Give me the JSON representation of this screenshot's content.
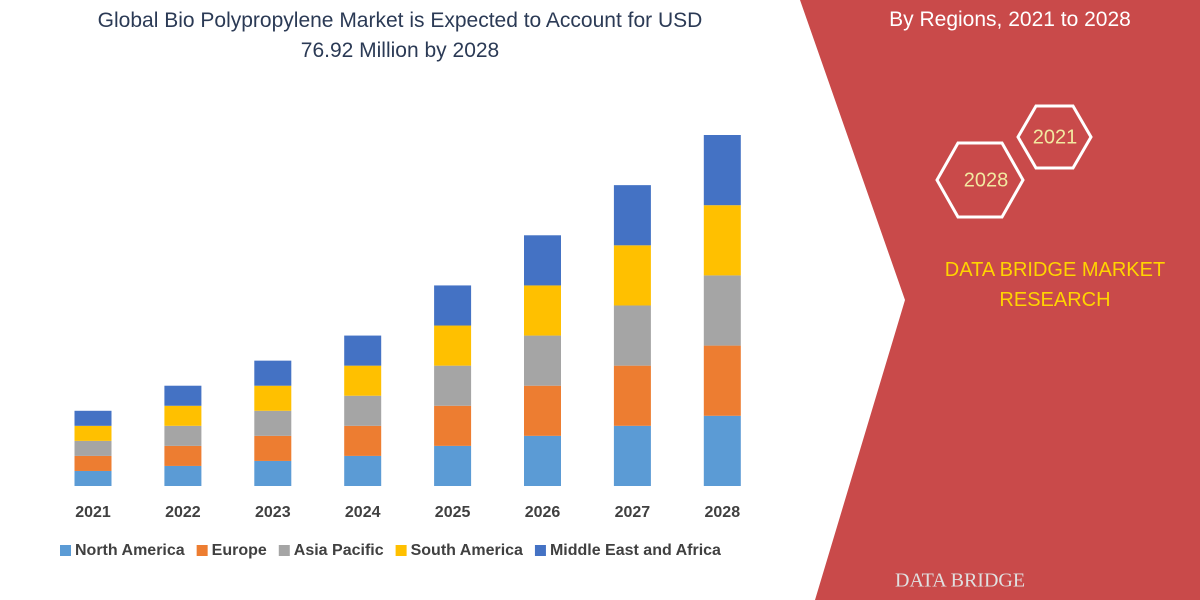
{
  "chart_data": {
    "type": "stacked_bar",
    "title": "Global Bio Polypropylene Market is Expected to Account for USD 76.92 Million by 2028",
    "categories": [
      "2021",
      "2022",
      "2023",
      "2024",
      "2025",
      "2026",
      "2027",
      "2028"
    ],
    "series": [
      {
        "name": "North America",
        "color": "#5b9bd5",
        "values": [
          15,
          20,
          25,
          30,
          40,
          50,
          60,
          70
        ]
      },
      {
        "name": "Europe",
        "color": "#ed7d31",
        "values": [
          15,
          20,
          25,
          30,
          40,
          50,
          60,
          70
        ]
      },
      {
        "name": "Asia Pacific",
        "color": "#a5a5a5",
        "values": [
          15,
          20,
          25,
          30,
          40,
          50,
          60,
          70
        ]
      },
      {
        "name": "South America",
        "color": "#ffc000",
        "values": [
          15,
          20,
          25,
          30,
          40,
          50,
          60,
          70
        ]
      },
      {
        "name": "Middle East and Africa",
        "color": "#4472c4",
        "values": [
          15,
          20,
          25,
          30,
          40,
          50,
          60,
          70
        ]
      }
    ]
  },
  "panel": {
    "subtitle": "By Regions, 2021 to 2028",
    "hexagons": [
      "2021",
      "2028"
    ],
    "brand": "DATA BRIDGE MARKET RESEARCH",
    "logo": "DATA BRIDGE"
  }
}
